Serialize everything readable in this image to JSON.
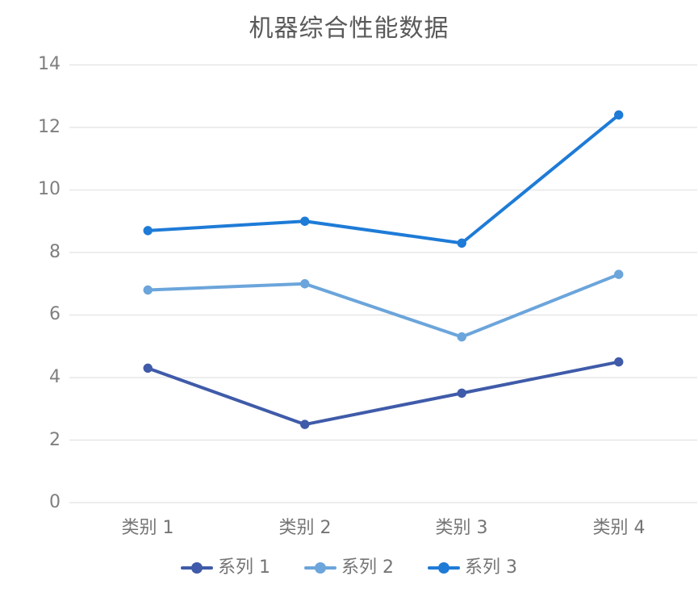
{
  "chart_data": {
    "type": "line",
    "title": "机器综合性能数据",
    "categories": [
      "类别 1",
      "类别 2",
      "类别 3",
      "类别 4"
    ],
    "series": [
      {
        "name": "系列 1",
        "color": "#3F5BA9",
        "values": [
          4.3,
          2.5,
          3.5,
          4.5
        ]
      },
      {
        "name": "系列 2",
        "color": "#6BA5DB",
        "values": [
          6.8,
          7.0,
          5.3,
          7.3
        ]
      },
      {
        "name": "系列 3",
        "color": "#1E7BD7",
        "values": [
          8.7,
          9.0,
          8.3,
          12.4
        ]
      }
    ],
    "ylim": [
      0,
      14
    ],
    "ytick_step": 2,
    "yticks": [
      "0",
      "2",
      "4",
      "6",
      "8",
      "10",
      "12",
      "14"
    ],
    "xlabel": "",
    "ylabel": "",
    "grid": "horizontal",
    "legend_position": "bottom",
    "marker": "circle",
    "colors": {
      "title": "#595959",
      "gridline": "#E2E2E2",
      "axis_tick_label": "#7F7F7F",
      "category_label": "#757575",
      "legend_label": "#757575",
      "background": "#FFFFFF"
    }
  }
}
